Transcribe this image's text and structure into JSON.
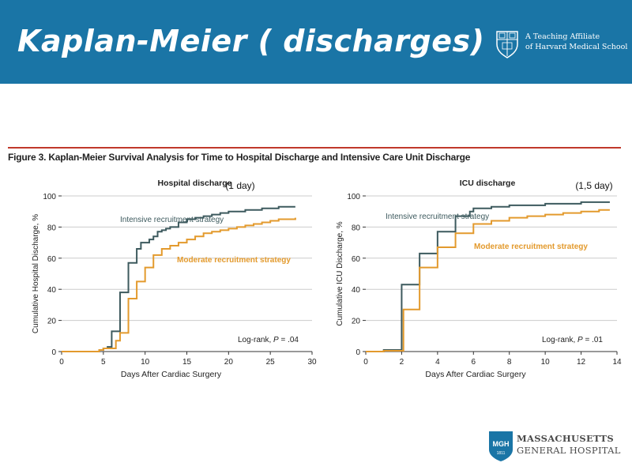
{
  "slide": {
    "title": "Kaplan-Meier ( discharges)",
    "affiliation_line1": "A Teaching Affiliate",
    "affiliation_line2": "of Harvard Medical School",
    "hospital_line1": "MASSACHUSETTS",
    "hospital_line2": "GENERAL HOSPITAL",
    "hospital_badge": "MGH",
    "hospital_badge_year": "1811"
  },
  "figure": {
    "caption": "Figure 3. Kaplan-Meier Survival Analysis for Time to Hospital Discharge and Intensive Care Unit Discharge"
  },
  "colors": {
    "banner": "#1a75a6",
    "intensive": "#3d5a5e",
    "moderate": "#e39a2d",
    "caption_rule": "#c0392b",
    "grid": "#cccccc"
  },
  "chart_data": [
    {
      "type": "line",
      "step": true,
      "title": "Hospital discharge",
      "annotation": "(1 day)",
      "xlabel": "Days After Cardiac Surgery",
      "ylabel": "Cumulative Hospital Discharge, %",
      "xlim": [
        0,
        30
      ],
      "ylim": [
        0,
        100
      ],
      "xticks": [
        0,
        5,
        10,
        15,
        20,
        25,
        30
      ],
      "yticks": [
        0,
        20,
        40,
        60,
        80,
        100
      ],
      "grid": "horizontal",
      "stat_prefix": "Log-rank, ",
      "stat_p": "P",
      "stat_value": " = .04",
      "series": [
        {
          "name": "Intensive recruitment strategy",
          "color": "#3d5a5e",
          "x": [
            0,
            4.5,
            5,
            5.5,
            6,
            7,
            8,
            9,
            9.5,
            10,
            10.5,
            11,
            11.5,
            12,
            12.5,
            13,
            14,
            15,
            16,
            17,
            18,
            19,
            20,
            21,
            22,
            23,
            24,
            25,
            26,
            27,
            28
          ],
          "y": [
            0,
            1,
            2,
            3,
            13,
            38,
            57,
            66,
            70,
            70,
            72,
            74,
            77,
            78,
            79,
            80,
            83,
            85,
            86,
            87,
            88,
            89,
            90,
            90,
            91,
            91,
            92,
            92,
            93,
            93,
            93
          ]
        },
        {
          "name": "Moderate recruitment strategy",
          "color": "#e39a2d",
          "x": [
            0,
            4.5,
            5,
            6,
            6.5,
            7,
            8,
            9,
            10,
            11,
            12,
            13,
            14,
            15,
            16,
            17,
            18,
            19,
            20,
            21,
            22,
            23,
            24,
            25,
            26,
            27,
            28
          ],
          "y": [
            0,
            1,
            2,
            2,
            7,
            12,
            34,
            45,
            54,
            62,
            66,
            68,
            70,
            72,
            74,
            76,
            77,
            78,
            79,
            80,
            81,
            82,
            83,
            84,
            85,
            85,
            86
          ]
        }
      ]
    },
    {
      "type": "line",
      "step": true,
      "title": "ICU discharge",
      "annotation": "(1,5 day)",
      "xlabel": "Days After Cardiac Surgery",
      "ylabel": "Cumulative ICU Discharge, %",
      "xlim": [
        0,
        14
      ],
      "ylim": [
        0,
        100
      ],
      "xticks": [
        0,
        2,
        4,
        6,
        8,
        10,
        12,
        14
      ],
      "yticks": [
        0,
        20,
        40,
        60,
        80,
        100
      ],
      "grid": "horizontal",
      "stat_prefix": "Log-rank, ",
      "stat_p": "P",
      "stat_value": " = .01",
      "series": [
        {
          "name": "Intensive recruitment strategy",
          "color": "#3d5a5e",
          "x": [
            0,
            1,
            2,
            3,
            4,
            5,
            5.8,
            6,
            7,
            8,
            9,
            10,
            11,
            12,
            13,
            13.6
          ],
          "y": [
            0,
            1,
            43,
            63,
            77,
            87,
            90,
            92,
            93,
            94,
            94,
            95,
            95,
            96,
            96,
            96
          ]
        },
        {
          "name": "Moderate recruitment strategy",
          "color": "#e39a2d",
          "x": [
            0,
            1,
            2.1,
            3,
            4,
            5,
            6,
            7,
            8,
            9,
            10,
            11,
            12,
            13,
            13.6
          ],
          "y": [
            0,
            0.5,
            27,
            54,
            67,
            76,
            82,
            84,
            86,
            87,
            88,
            89,
            90,
            91,
            91
          ]
        }
      ]
    }
  ]
}
